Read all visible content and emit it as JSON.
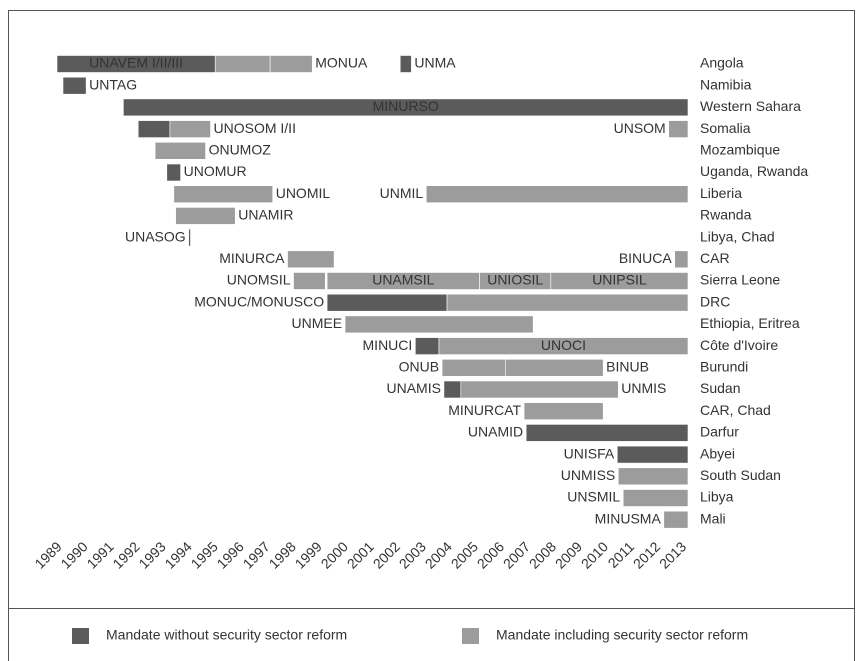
{
  "chart_data": {
    "type": "timeline",
    "xlim": [
      1989,
      2013.25
    ],
    "xticks": [
      1989,
      1990,
      1991,
      1992,
      1993,
      1994,
      1995,
      1996,
      1997,
      1998,
      1999,
      2000,
      2001,
      2002,
      2003,
      2004,
      2005,
      2006,
      2007,
      2008,
      2009,
      2010,
      2011,
      2012,
      2013
    ],
    "series": [
      {
        "name": "Mandate without security sector reform",
        "color": "#5b5b5b"
      },
      {
        "name": "Mandate including security sector reform",
        "color": "#9c9c9c"
      }
    ],
    "rows": [
      {
        "label": "Angola",
        "missions": [
          {
            "name": "UNAVEM I/II/III",
            "label_side": "inside",
            "series": 0,
            "start": 1989.0,
            "end": 1995.08
          },
          {
            "series": 1,
            "start": 1995.08,
            "end": 1997.19
          },
          {
            "name": "MONUA",
            "label_side": "right",
            "series": 1,
            "start": 1997.19,
            "end": 1998.81
          },
          {
            "name": "UNMA",
            "label_side": "right",
            "series": 0,
            "start": 2002.19,
            "end": 2002.62
          }
        ]
      },
      {
        "label": "Namibia",
        "missions": [
          {
            "name": "UNTAG",
            "label_side": "right",
            "series": 0,
            "start": 1989.23,
            "end": 1990.12
          }
        ]
      },
      {
        "label": "Western Sahara",
        "missions": [
          {
            "name": "MINURSO",
            "label_side": "inside",
            "series": 0,
            "start": 1991.55,
            "end": 2013.25
          }
        ]
      },
      {
        "label": "Somalia",
        "missions": [
          {
            "series": 0,
            "start": 1992.12,
            "end": 1993.34
          },
          {
            "name": "UNOSOM I/II",
            "label_side": "right",
            "series": 1,
            "start": 1993.34,
            "end": 1994.9
          },
          {
            "name": "UNSOM",
            "label_side": "left",
            "series": 1,
            "start": 2012.51,
            "end": 2013.25
          }
        ]
      },
      {
        "label": "Mozambique",
        "missions": [
          {
            "name": "ONUMOZ",
            "label_side": "right",
            "series": 1,
            "start": 1992.77,
            "end": 1994.71
          }
        ]
      },
      {
        "label": "Uganda, Rwanda",
        "missions": [
          {
            "name": "UNOMUR",
            "label_side": "right",
            "series": 0,
            "start": 1993.22,
            "end": 1993.75
          }
        ]
      },
      {
        "label": "Liberia",
        "missions": [
          {
            "name": "UNOMIL",
            "label_side": "right",
            "series": 1,
            "start": 1993.49,
            "end": 1997.29
          },
          {
            "name": "UNMIL",
            "label_side": "left",
            "series": 1,
            "start": 2003.19,
            "end": 2013.25
          }
        ]
      },
      {
        "label": "Rwanda",
        "missions": [
          {
            "name": "UNAMIR",
            "label_side": "right",
            "series": 1,
            "start": 1993.56,
            "end": 1995.85
          }
        ]
      },
      {
        "label": "Libya, Chad",
        "missions": [
          {
            "name": "UNASOG",
            "label_side": "left",
            "series": 0,
            "start": 1994.06,
            "end": 1994.13
          }
        ]
      },
      {
        "label": "CAR",
        "missions": [
          {
            "name": "MINURCA",
            "label_side": "left",
            "series": 1,
            "start": 1997.86,
            "end": 1999.65
          },
          {
            "name": "BINUCA",
            "label_side": "left",
            "series": 1,
            "start": 2012.74,
            "end": 2013.25
          }
        ]
      },
      {
        "label": "Sierra Leone",
        "missions": [
          {
            "name": "UNOMSIL",
            "label_side": "left",
            "series": 1,
            "start": 1998.09,
            "end": 1999.31
          },
          {
            "name": "UNAMSIL",
            "label_side": "inside",
            "series": 1,
            "start": 1999.38,
            "end": 2005.24
          },
          {
            "name": "UNIOSIL",
            "label_side": "inside",
            "series": 1,
            "start": 2005.24,
            "end": 2007.98
          },
          {
            "name": "UNIPSIL",
            "label_side": "inside",
            "series": 1,
            "start": 2007.98,
            "end": 2013.25
          }
        ]
      },
      {
        "label": "DRC",
        "missions": [
          {
            "name": "MONUC/MONUSCO",
            "label_side": "left",
            "series": 0,
            "start": 1999.38,
            "end": 2003.99
          },
          {
            "series": 1,
            "start": 2003.99,
            "end": 2013.25
          }
        ]
      },
      {
        "label": "Ethiopia, Eritrea",
        "missions": [
          {
            "name": "UNMEE",
            "label_side": "left",
            "series": 1,
            "start": 2000.07,
            "end": 2007.3
          }
        ]
      },
      {
        "label": "Côte d'Ivoire",
        "missions": [
          {
            "name": "MINUCI",
            "label_side": "left",
            "series": 0,
            "start": 2002.77,
            "end": 2003.68
          },
          {
            "name": "UNOCI",
            "label_side": "inside",
            "series": 1,
            "start": 2003.68,
            "end": 2013.25
          }
        ]
      },
      {
        "label": "Burundi",
        "missions": [
          {
            "name": "ONUB",
            "label_side": "left",
            "series": 1,
            "start": 2003.8,
            "end": 2006.23
          },
          {
            "name": "BINUB",
            "label_side": "right",
            "series": 1,
            "start": 2006.23,
            "end": 2009.99
          }
        ]
      },
      {
        "label": "Sudan",
        "missions": [
          {
            "name": "UNAMIS",
            "label_side": "left",
            "series": 0,
            "start": 2003.87,
            "end": 2004.52
          },
          {
            "name": "UNMIS",
            "label_side": "right",
            "series": 1,
            "start": 2004.52,
            "end": 2010.57
          }
        ]
      },
      {
        "label": "CAR, Chad",
        "missions": [
          {
            "name": "MINURCAT",
            "label_side": "left",
            "series": 1,
            "start": 2006.95,
            "end": 2009.99
          }
        ]
      },
      {
        "label": "Darfur",
        "missions": [
          {
            "name": "UNAMID",
            "label_side": "left",
            "series": 0,
            "start": 2007.03,
            "end": 2013.25
          }
        ]
      },
      {
        "label": "Abyei",
        "missions": [
          {
            "name": "UNISFA",
            "label_side": "left",
            "series": 0,
            "start": 2010.53,
            "end": 2013.25
          }
        ]
      },
      {
        "label": "South Sudan",
        "missions": [
          {
            "name": "UNMISS",
            "label_side": "left",
            "series": 1,
            "start": 2010.57,
            "end": 2013.25
          }
        ]
      },
      {
        "label": "Libya",
        "missions": [
          {
            "name": "UNSMIL",
            "label_side": "left",
            "series": 1,
            "start": 2010.76,
            "end": 2013.25
          }
        ]
      },
      {
        "label": "Mali",
        "missions": [
          {
            "name": "MINUSMA",
            "label_side": "left",
            "series": 1,
            "start": 2012.32,
            "end": 2013.25
          }
        ]
      }
    ]
  }
}
